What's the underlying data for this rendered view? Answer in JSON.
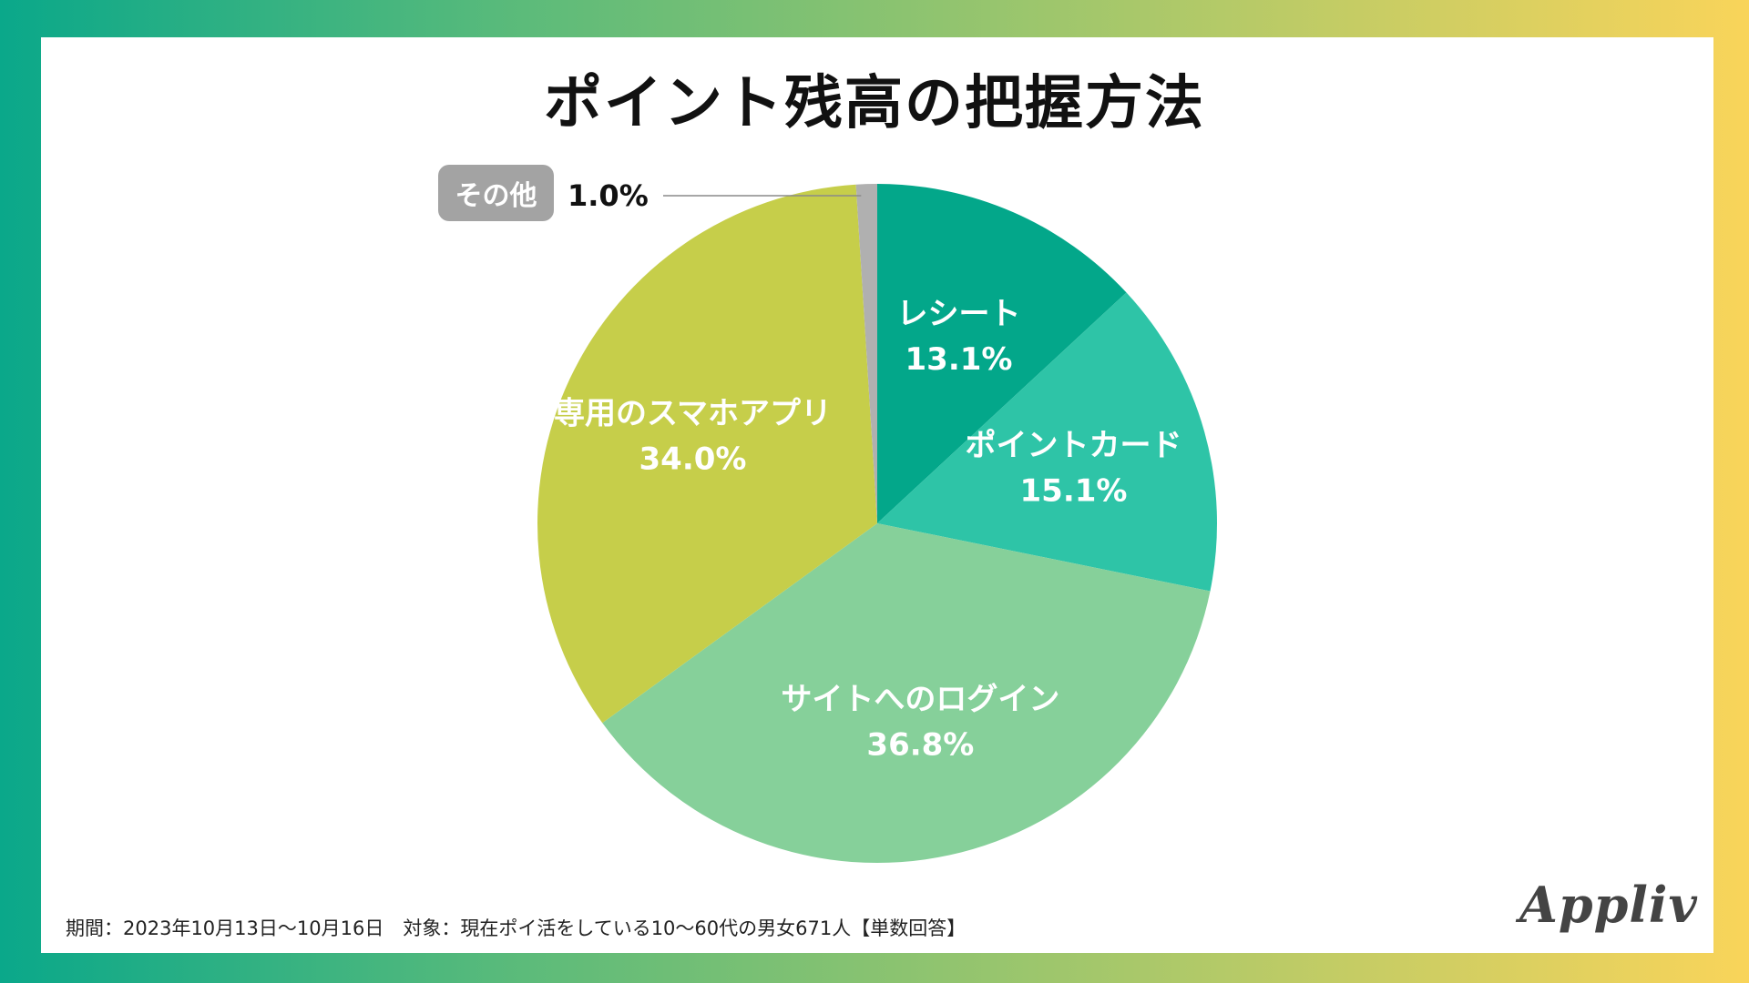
{
  "chart_data": {
    "type": "pie",
    "title": "ポイント残高の把握方法",
    "start": "12 o'clock, clockwise",
    "slices": [
      {
        "label": "レシート",
        "value": 13.1,
        "value_label": "13.1%",
        "color": "#03a78a"
      },
      {
        "label": "ポイントカード",
        "value": 15.1,
        "value_label": "15.1%",
        "color": "#2ec4a7"
      },
      {
        "label": "サイトへのログイン",
        "value": 36.8,
        "value_label": "36.8%",
        "color": "#86d09a"
      },
      {
        "label": "専用のスマホアプリ",
        "value": 34.0,
        "value_label": "34.0%",
        "color": "#c6ce4a"
      },
      {
        "label": "その他",
        "value": 1.0,
        "value_label": "1.0%",
        "color": "#b0b0b0",
        "callout": true
      }
    ]
  },
  "footnote": "期間：2023年10月13日～10月16日　対象：現在ポイ活をしている10～60代の男女671人【単数回答】",
  "logo_text": "Appliv",
  "colors": {
    "frame_start": "#0aa88a",
    "frame_end": "#f9d45a",
    "label_text": "#ffffff",
    "title_text": "#111111"
  }
}
